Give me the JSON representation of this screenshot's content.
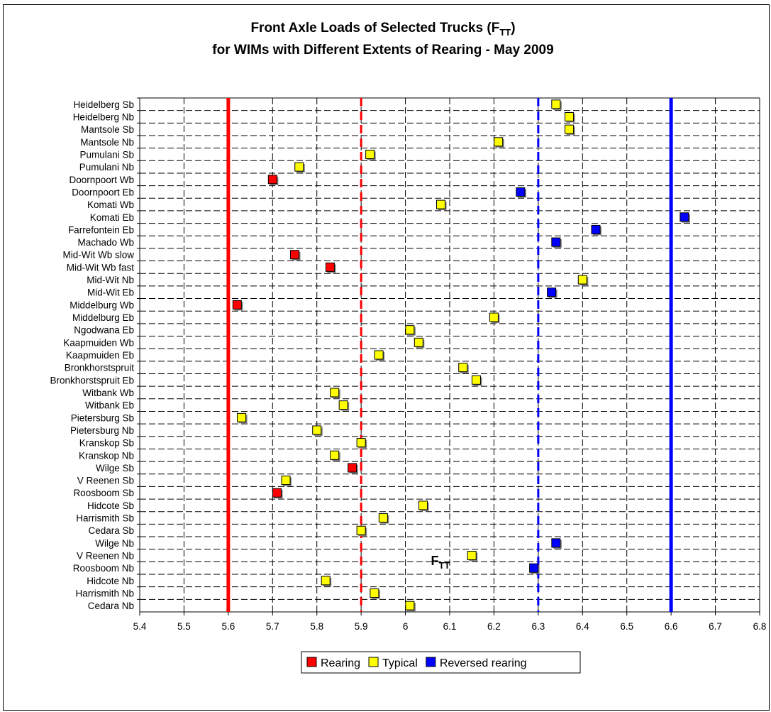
{
  "chart_data": {
    "type": "scatter",
    "title_line1": "Front Axle Loads of Selected Trucks (F",
    "title_line1_sub": "TT",
    "title_line1_end": ")",
    "title_line2": "for WIMs with Different Extents of Rearing - May 2009",
    "xlabel": "F",
    "xlabel_sub": "TT",
    "xlim": [
      5.4,
      6.8
    ],
    "xticks": [
      "5.4",
      "5.5",
      "5.6",
      "5.7",
      "5.8",
      "5.9",
      "6",
      "6.1",
      "6.2",
      "6.3",
      "6.4",
      "6.5",
      "6.6",
      "6.7",
      "6.8"
    ],
    "grid": true,
    "legend_position": "bottom",
    "colors": {
      "Rearing": "#ff0000",
      "Typical": "#ffff00",
      "Reversed rearing": "#0000ff"
    },
    "categories": [
      "Heidelberg Sb",
      "Heidelberg Nb",
      "Mantsole Sb",
      "Mantsole Nb",
      "Pumulani Sb",
      "Pumulani Nb",
      "Doornpoort Wb",
      "Doornpoort Eb",
      "Komati Wb",
      "Komati Eb",
      "Farrefontein Eb",
      "Machado Wb",
      "Mid-Wit Wb slow",
      "Mid-Wit Wb fast",
      "Mid-Wit Nb",
      "Mid-Wit Eb",
      "Middelburg Wb",
      "Middelburg Eb",
      "Ngodwana Eb",
      "Kaapmuiden Wb",
      "Kaapmuiden Eb",
      "Bronkhorstspruit",
      "Bronkhorstspruit Eb",
      "Witbank Wb",
      "Witbank Eb",
      "Pietersburg Sb",
      "Pietersburg Nb",
      "Kranskop Sb",
      "Kranskop Nb",
      "Wilge Sb",
      "V Reenen Sb",
      "Roosboom Sb",
      "Hidcote Sb",
      "Harrismith Sb",
      "Cedara Sb",
      "Wilge Nb",
      "V Reenen Nb",
      "Roosboom Nb",
      "Hidcote Nb",
      "Harrismith Nb",
      "Cedara Nb"
    ],
    "points": [
      {
        "x": 6.34,
        "type": "Typical"
      },
      {
        "x": 6.37,
        "type": "Typical"
      },
      {
        "x": 6.37,
        "type": "Typical"
      },
      {
        "x": 6.21,
        "type": "Typical"
      },
      {
        "x": 5.92,
        "type": "Typical"
      },
      {
        "x": 5.76,
        "type": "Typical"
      },
      {
        "x": 5.7,
        "type": "Rearing"
      },
      {
        "x": 6.26,
        "type": "Reversed rearing"
      },
      {
        "x": 6.08,
        "type": "Typical"
      },
      {
        "x": 6.63,
        "type": "Reversed rearing"
      },
      {
        "x": 6.43,
        "type": "Reversed rearing"
      },
      {
        "x": 6.34,
        "type": "Reversed rearing"
      },
      {
        "x": 5.75,
        "type": "Rearing"
      },
      {
        "x": 5.83,
        "type": "Rearing"
      },
      {
        "x": 6.4,
        "type": "Typical"
      },
      {
        "x": 6.33,
        "type": "Reversed rearing"
      },
      {
        "x": 5.62,
        "type": "Rearing"
      },
      {
        "x": 6.2,
        "type": "Typical"
      },
      {
        "x": 6.01,
        "type": "Typical"
      },
      {
        "x": 6.03,
        "type": "Typical"
      },
      {
        "x": 5.94,
        "type": "Typical"
      },
      {
        "x": 6.13,
        "type": "Typical"
      },
      {
        "x": 6.16,
        "type": "Typical"
      },
      {
        "x": 5.84,
        "type": "Typical"
      },
      {
        "x": 5.86,
        "type": "Typical"
      },
      {
        "x": 5.63,
        "type": "Typical"
      },
      {
        "x": 5.8,
        "type": "Typical"
      },
      {
        "x": 5.9,
        "type": "Typical"
      },
      {
        "x": 5.84,
        "type": "Typical"
      },
      {
        "x": 5.88,
        "type": "Rearing"
      },
      {
        "x": 5.73,
        "type": "Typical"
      },
      {
        "x": 5.71,
        "type": "Rearing"
      },
      {
        "x": 6.04,
        "type": "Typical"
      },
      {
        "x": 5.95,
        "type": "Typical"
      },
      {
        "x": 5.9,
        "type": "Typical"
      },
      {
        "x": 6.34,
        "type": "Reversed rearing"
      },
      {
        "x": 6.15,
        "type": "Typical"
      },
      {
        "x": 6.29,
        "type": "Reversed rearing"
      },
      {
        "x": 5.82,
        "type": "Typical"
      },
      {
        "x": 5.93,
        "type": "Typical"
      },
      {
        "x": 6.01,
        "type": "Typical"
      }
    ],
    "reference_lines": [
      {
        "x": 5.6,
        "color": "#ff0000",
        "style": "solid"
      },
      {
        "x": 5.9,
        "color": "#ff0000",
        "style": "dashed"
      },
      {
        "x": 6.3,
        "color": "#0000ff",
        "style": "dashed"
      },
      {
        "x": 6.6,
        "color": "#0000ff",
        "style": "solid"
      }
    ],
    "legend": [
      "Rearing",
      "Typical",
      "Reversed rearing"
    ]
  }
}
